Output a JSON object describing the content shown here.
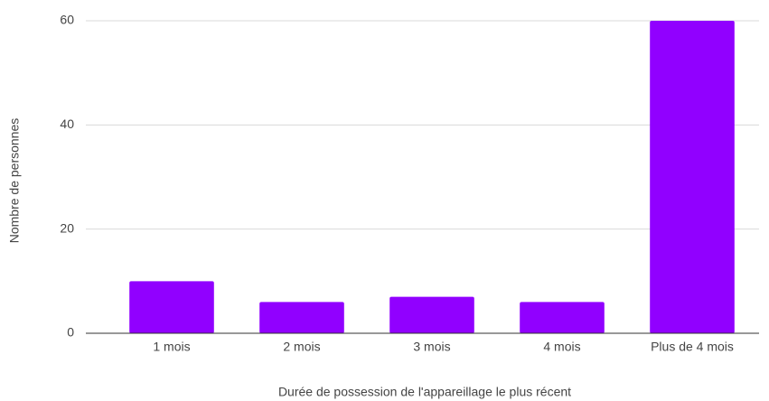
{
  "chart_data": {
    "type": "bar",
    "x_label": "Durée de possession de l'appareillage le plus récent",
    "y_label": "Nombre de personnes",
    "categories": [
      "1 mois",
      "2 mois",
      "3 mois",
      "4 mois",
      "Plus de 4 mois"
    ],
    "values": [
      10,
      6,
      7,
      6,
      60
    ],
    "color": "#9100ff",
    "ylim": [
      0,
      60
    ],
    "yticks": [
      0,
      20,
      40,
      60
    ],
    "grid": true
  }
}
